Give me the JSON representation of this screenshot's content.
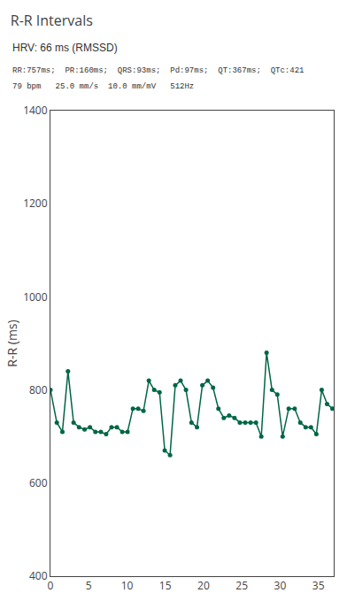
{
  "chart_data": {
    "type": "line",
    "title": "R-R Intervals",
    "y_label": "R-R (ms)",
    "annotations": [
      "HRV: 66 ms (RMSSD)",
      "RR:757ms;  PR:160ms;  QRS:93ms;  Pd:97ms;  QT:367ms;  QTc:421",
      "79 bpm   25.0 mm/s  10.0 mm/mV   512Hz"
    ],
    "x": [
      0.0,
      0.83,
      1.56,
      2.29,
      3.02,
      3.73,
      4.46,
      5.16,
      5.87,
      6.58,
      7.27,
      7.97,
      8.68,
      9.38,
      10.07,
      10.77,
      11.46,
      12.15,
      12.85,
      13.55,
      14.25,
      14.93,
      15.62,
      16.3,
      17.0,
      17.7,
      18.42,
      19.14,
      19.84,
      20.54,
      21.24,
      21.94,
      22.64,
      23.34,
      24.04,
      24.74,
      25.44,
      26.14,
      26.84,
      27.54,
      28.23,
      28.94,
      29.63,
      30.33,
      31.12,
      31.9,
      32.63,
      33.33,
      34.03,
      34.73,
      35.43,
      36.13,
      36.83
    ],
    "values": [
      800,
      730,
      710,
      840,
      730,
      720,
      715,
      720,
      710,
      710,
      705,
      720,
      720,
      710,
      710,
      760,
      760,
      755,
      820,
      800,
      795,
      670,
      660,
      810,
      820,
      800,
      730,
      720,
      810,
      820,
      805,
      760,
      740,
      745,
      740,
      730,
      730,
      730,
      730,
      700,
      880,
      800,
      790,
      700,
      760,
      760,
      730,
      720,
      720,
      705,
      800,
      770,
      760
    ],
    "color": "#006644",
    "marker": "circle",
    "line_style": "solid",
    "xlim": [
      0,
      37
    ],
    "xticks": [
      0,
      5,
      10,
      15,
      20,
      25,
      30,
      35
    ],
    "ylim": [
      400,
      1400
    ],
    "yticks": [
      400,
      600,
      800,
      1000,
      1200,
      1400
    ],
    "grid": false
  }
}
